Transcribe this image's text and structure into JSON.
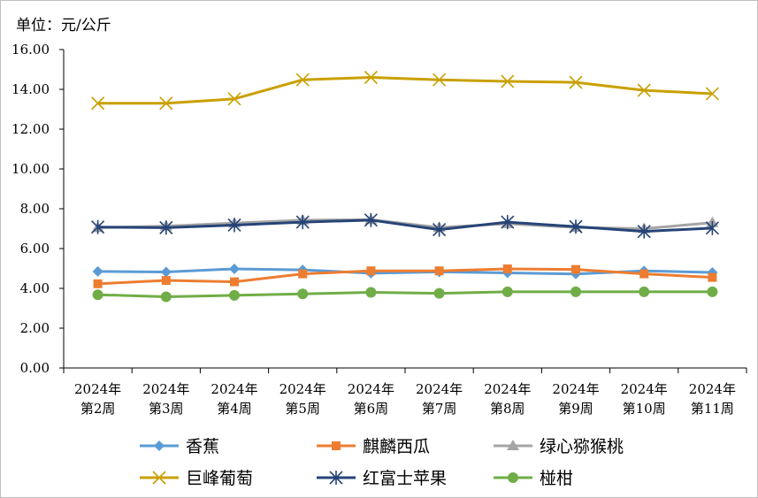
{
  "chart_data": {
    "type": "line",
    "unit_label": "单位：元/公斤",
    "ylim": [
      0,
      16
    ],
    "y_ticks": [
      "0.00",
      "2.00",
      "4.00",
      "6.00",
      "8.00",
      "10.00",
      "12.00",
      "14.00",
      "16.00"
    ],
    "categories": [
      [
        "2024年",
        "第2周"
      ],
      [
        "2024年",
        "第3周"
      ],
      [
        "2024年",
        "第4周"
      ],
      [
        "2024年",
        "第5周"
      ],
      [
        "2024年",
        "第6周"
      ],
      [
        "2024年",
        "第7周"
      ],
      [
        "2024年",
        "第8周"
      ],
      [
        "2024年",
        "第9周"
      ],
      [
        "2024年",
        "第10周"
      ],
      [
        "2024年",
        "第11周"
      ]
    ],
    "grid": false,
    "legend_position": "bottom",
    "series": [
      {
        "name": "香蕉",
        "color": "#5b9bd5",
        "marker": "diamond",
        "values": [
          4.85,
          4.82,
          4.98,
          4.93,
          4.76,
          4.83,
          4.78,
          4.72,
          4.88,
          4.8
        ]
      },
      {
        "name": "麒麟西瓜",
        "color": "#ed7d31",
        "marker": "square",
        "values": [
          4.23,
          4.4,
          4.33,
          4.73,
          4.88,
          4.88,
          4.98,
          4.95,
          4.73,
          4.55
        ]
      },
      {
        "name": "绿心猕猴桃",
        "color": "#a5a5a5",
        "marker": "triangle",
        "values": [
          7.05,
          7.13,
          7.28,
          7.43,
          7.45,
          7.06,
          7.25,
          7.06,
          7.0,
          7.3
        ]
      },
      {
        "name": "巨峰葡萄",
        "color": "#c9a000",
        "marker": "x",
        "values": [
          13.3,
          13.3,
          13.52,
          14.48,
          14.6,
          14.48,
          14.4,
          14.35,
          13.95,
          13.78
        ]
      },
      {
        "name": "红富士苹果",
        "color": "#264478",
        "marker": "star",
        "values": [
          7.08,
          7.05,
          7.18,
          7.33,
          7.43,
          6.95,
          7.33,
          7.1,
          6.86,
          7.03
        ]
      },
      {
        "name": "椪柑",
        "color": "#70ad47",
        "marker": "circle",
        "values": [
          3.68,
          3.58,
          3.65,
          3.72,
          3.8,
          3.75,
          3.83,
          3.83,
          3.83,
          3.83
        ]
      }
    ]
  }
}
